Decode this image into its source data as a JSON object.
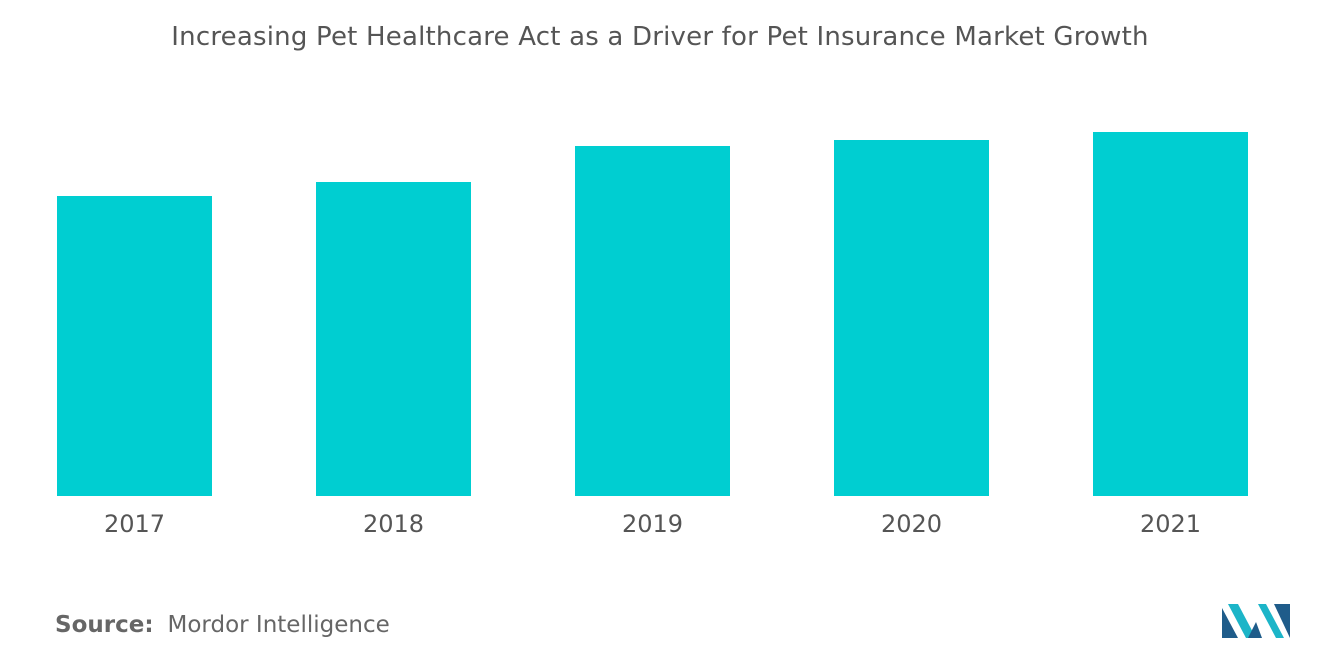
{
  "chart_data": {
    "type": "bar",
    "title": "Increasing Pet Healthcare Act as a Driver for Pet Insurance Market Growth",
    "categories": [
      "2017",
      "2018",
      "2019",
      "2020",
      "2021"
    ],
    "values": [
      75,
      78.5,
      87.5,
      89,
      91
    ],
    "ylim": [
      0,
      100
    ],
    "xlabel": "",
    "ylabel": "",
    "grid": false,
    "bar_color": "#00CED1"
  },
  "footer": {
    "source_label": "Source:",
    "source_text": "Mordor Intelligence"
  },
  "colors": {
    "title": "#555555",
    "tick_label": "#555555",
    "logo_dark": "#1F5C8A",
    "logo_light": "#1CB5C8"
  },
  "logo": {
    "icon": "mordor-intelligence-logo-icon"
  }
}
